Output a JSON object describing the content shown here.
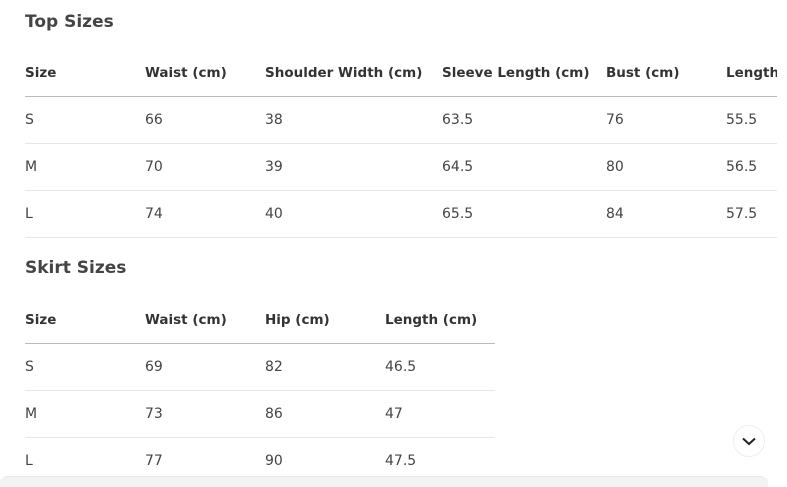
{
  "top": {
    "title": "Top Sizes",
    "headers": [
      "Size",
      "Waist (cm)",
      "Shoulder Width (cm)",
      "Sleeve Length (cm)",
      "Bust (cm)",
      "Length (cm)"
    ],
    "rows": [
      [
        "S",
        "66",
        "38",
        "63.5",
        "76",
        "55.5"
      ],
      [
        "M",
        "70",
        "39",
        "64.5",
        "80",
        "56.5"
      ],
      [
        "L",
        "74",
        "40",
        "65.5",
        "84",
        "57.5"
      ]
    ]
  },
  "skirt": {
    "title": "Skirt Sizes",
    "headers": [
      "Size",
      "Waist (cm)",
      "Hip (cm)",
      "Length (cm)"
    ],
    "rows": [
      [
        "S",
        "69",
        "82",
        "46.5"
      ],
      [
        "M",
        "73",
        "86",
        "47"
      ],
      [
        "L",
        "77",
        "90",
        "47.5"
      ]
    ]
  },
  "scroll_button": {
    "icon": "chevron-down-icon"
  }
}
